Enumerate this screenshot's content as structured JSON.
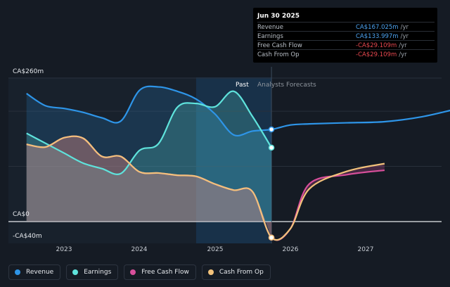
{
  "tooltip": {
    "date": "Jun 30 2025",
    "rows": [
      {
        "label": "Revenue",
        "value": "CA$167.025m",
        "unit": "/yr",
        "color": "#4da3f0"
      },
      {
        "label": "Earnings",
        "value": "CA$133.997m",
        "unit": "/yr",
        "color": "#4da3f0"
      },
      {
        "label": "Free Cash Flow",
        "value": "-CA$29.109m",
        "unit": "/yr",
        "color": "#e8484f"
      },
      {
        "label": "Cash From Op",
        "value": "-CA$29.109m",
        "unit": "/yr",
        "color": "#e8484f"
      }
    ]
  },
  "labels": {
    "past": "Past",
    "forecast": "Analysts Forecasts"
  },
  "legend": [
    {
      "label": "Revenue",
      "color": "#2e95e8"
    },
    {
      "label": "Earnings",
      "color": "#5fe3dc"
    },
    {
      "label": "Free Cash Flow",
      "color": "#d84f9b"
    },
    {
      "label": "Cash From Op",
      "color": "#f2c27b"
    }
  ],
  "chart_data": {
    "type": "line",
    "y_tick_labels": [
      "CA$260m",
      "CA$0",
      "-CA$40m"
    ],
    "ylim": [
      -40,
      260
    ],
    "x_tick_labels": [
      "2023",
      "2024",
      "2025",
      "2026",
      "2027"
    ],
    "xlim": [
      2022.25,
      2027.98
    ],
    "past_end": 2025.5,
    "shaded_band": [
      2024.5,
      2025.5
    ],
    "series": [
      {
        "name": "Revenue",
        "color": "#2e95e8",
        "x": [
          2022.25,
          2022.5,
          2022.75,
          2023.0,
          2023.25,
          2023.5,
          2023.75,
          2024.0,
          2024.25,
          2024.5,
          2024.75,
          2025.0,
          2025.25,
          2025.5,
          2025.75,
          2026.0,
          2026.5,
          2027.0,
          2027.5,
          2027.98
        ],
        "y": [
          232,
          210,
          205,
          198,
          188,
          182,
          238,
          244,
          236,
          222,
          195,
          157,
          164,
          167,
          175,
          177,
          179,
          181,
          190,
          205
        ]
      },
      {
        "name": "Earnings",
        "color": "#5fe3dc",
        "x": [
          2022.25,
          2022.5,
          2022.75,
          2023.0,
          2023.25,
          2023.5,
          2023.75,
          2024.0,
          2024.25,
          2024.5,
          2024.75,
          2025.0,
          2025.25,
          2025.5
        ],
        "y": [
          160,
          142,
          124,
          106,
          96,
          87,
          129,
          141,
          207,
          214,
          208,
          236,
          190,
          134
        ]
      },
      {
        "name": "Free Cash Flow",
        "color": "#d84f9b",
        "x": [
          2022.25,
          2022.5,
          2022.75,
          2023.0,
          2023.25,
          2023.5,
          2023.75,
          2024.0,
          2024.25,
          2024.5,
          2024.75,
          2025.0,
          2025.25,
          2025.5,
          2025.75,
          2026.0,
          2026.5,
          2027.0
        ],
        "y": [
          140,
          135,
          152,
          151,
          118,
          118,
          90,
          88,
          84,
          82,
          68,
          57,
          54,
          -29,
          -13,
          68,
          85,
          93
        ]
      },
      {
        "name": "Cash From Op",
        "color": "#f2c27b",
        "x": [
          2022.25,
          2022.5,
          2022.75,
          2023.0,
          2023.25,
          2023.5,
          2023.75,
          2024.0,
          2024.25,
          2024.5,
          2024.75,
          2025.0,
          2025.25,
          2025.5,
          2025.75,
          2026.0,
          2026.5,
          2027.0
        ],
        "y": [
          140,
          135,
          152,
          151,
          118,
          118,
          90,
          88,
          84,
          82,
          68,
          57,
          54,
          -29,
          -13,
          59,
          91,
          105
        ]
      }
    ]
  }
}
